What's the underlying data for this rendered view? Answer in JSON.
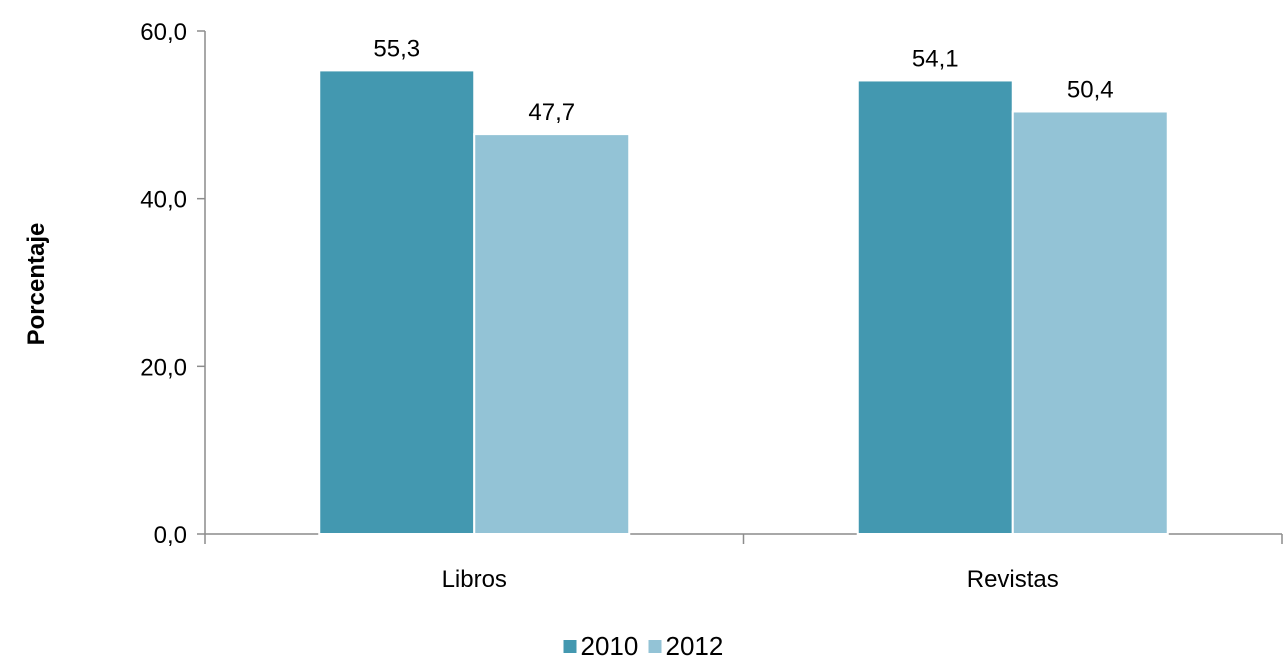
{
  "chart_data": {
    "type": "bar",
    "categories": [
      "Libros",
      "Revistas"
    ],
    "series": [
      {
        "name": "2010",
        "values": [
          55.3,
          54.1
        ],
        "labels": [
          "55,3",
          "54,1"
        ],
        "color": "#4398B0"
      },
      {
        "name": "2012",
        "values": [
          47.7,
          50.4
        ],
        "labels": [
          "47,7",
          "50,4"
        ],
        "color": "#93C3D6"
      }
    ],
    "title": "",
    "xlabel": "",
    "ylabel": "Porcentaje",
    "ylim": [
      0,
      60
    ],
    "yticks": [
      0,
      20,
      40,
      60
    ],
    "ytick_labels": [
      "0,0",
      "20,0",
      "40,0",
      "60,0"
    ],
    "grid": false,
    "legend_position": "bottom"
  }
}
